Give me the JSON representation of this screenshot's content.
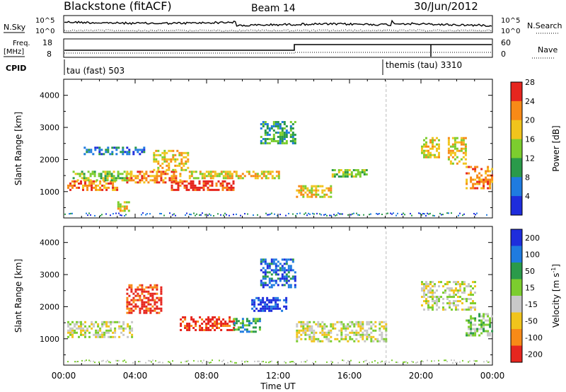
{
  "header": {
    "station": "Blackstone (fitACF)",
    "beam": "Beam 14",
    "date": "30/Jun/2012"
  },
  "side_labels": {
    "nsky": "N.Sky",
    "nsearch": "N.Search",
    "freq_top": "Freq.",
    "freq_unit": "[MHz]",
    "cpid": "CPID",
    "nave": "Nave",
    "nsky_tick_hi": "10^5",
    "nsky_tick_lo": "10^0",
    "nsearch_tick_hi": "10^5",
    "nsearch_tick_lo": "10^0",
    "freq_tick_hi": "18",
    "freq_tick_lo": "8",
    "nave_tick_hi": "60",
    "nave_tick_lo": "0"
  },
  "cpid": {
    "mode1": "tau (fast) 503",
    "mode2": "themis (tau) 3310"
  },
  "chart_data": [
    {
      "type": "heatmap",
      "panel": "power",
      "ylabel": "Slant Range [km]",
      "yticks": [
        1000,
        2000,
        3000,
        4000
      ],
      "ylim": [
        180,
        4500
      ],
      "xlim_hours": [
        0,
        24
      ],
      "colorbar": {
        "label": "Power [dB]",
        "ticks": [
          "4",
          "8",
          "12",
          "16",
          "20",
          "24",
          "28"
        ],
        "colors": [
          "#1e2ddc",
          "#1f7be0",
          "#2a9a4a",
          "#7ccd2e",
          "#f1c41c",
          "#f88a17",
          "#e6261f"
        ]
      },
      "regions": [
        {
          "t0": 0.2,
          "t1": 3.0,
          "r0": 1050,
          "r1": 1350,
          "level": 5
        },
        {
          "t0": 0.5,
          "t1": 3.8,
          "r0": 1350,
          "r1": 1650,
          "level": 3
        },
        {
          "t0": 1.0,
          "t1": 4.5,
          "r0": 2150,
          "r1": 2400,
          "level": 1
        },
        {
          "t0": 3.0,
          "t1": 3.7,
          "r0": 400,
          "r1": 700,
          "level": 4
        },
        {
          "t0": 3.5,
          "t1": 6.5,
          "r0": 1300,
          "r1": 1650,
          "level": 5
        },
        {
          "t0": 5.0,
          "t1": 7.0,
          "r0": 1700,
          "r1": 2300,
          "level": 4
        },
        {
          "t0": 6.0,
          "t1": 9.5,
          "r0": 1050,
          "r1": 1350,
          "level": 6
        },
        {
          "t0": 7.0,
          "t1": 12.0,
          "r0": 1400,
          "r1": 1650,
          "level": 4
        },
        {
          "t0": 11.0,
          "t1": 13.0,
          "r0": 2500,
          "r1": 3200,
          "level": 2
        },
        {
          "t0": 13.0,
          "t1": 15.0,
          "r0": 850,
          "r1": 1200,
          "level": 4
        },
        {
          "t0": 15.0,
          "t1": 17.0,
          "r0": 1450,
          "r1": 1700,
          "level": 3
        },
        {
          "t0": 20.0,
          "t1": 21.0,
          "r0": 2100,
          "r1": 2700,
          "level": 4
        },
        {
          "t0": 21.5,
          "t1": 22.5,
          "r0": 1900,
          "r1": 2700,
          "level": 4
        },
        {
          "t0": 22.5,
          "t1": 24.0,
          "r0": 1100,
          "r1": 1800,
          "level": 5
        }
      ]
    },
    {
      "type": "heatmap",
      "panel": "velocity",
      "ylabel": "Slant Range [km]",
      "xlabel": "Time UT",
      "yticks": [
        1000,
        2000,
        3000,
        4000
      ],
      "ylim": [
        180,
        4500
      ],
      "xlim_hours": [
        0,
        24
      ],
      "xticks": [
        "00:00",
        "04:00",
        "08:00",
        "12:00",
        "16:00",
        "20:00",
        "00:00"
      ],
      "colorbar": {
        "label": "Velocity [m s",
        "label_sup": "-1",
        "label_end": "]",
        "ticks": [
          "200",
          "100",
          "50",
          "15",
          "-15",
          "-50",
          "-100",
          "-200"
        ],
        "colors": [
          "#1e2ddc",
          "#1f7be0",
          "#2a9a4a",
          "#7ccd2e",
          "#c8c8c8",
          "#f1c41c",
          "#f88a17",
          "#e6261f"
        ]
      },
      "regions": [
        {
          "t0": 0.2,
          "t1": 3.8,
          "r0": 1050,
          "r1": 1550,
          "level": 4
        },
        {
          "t0": 3.5,
          "t1": 5.5,
          "r0": 1800,
          "r1": 2700,
          "level": 7
        },
        {
          "t0": 6.5,
          "t1": 9.5,
          "r0": 1300,
          "r1": 1700,
          "level": 7
        },
        {
          "t0": 9.5,
          "t1": 11.0,
          "r0": 1200,
          "r1": 1650,
          "level": 2
        },
        {
          "t0": 10.5,
          "t1": 12.5,
          "r0": 1900,
          "r1": 2300,
          "level": 0
        },
        {
          "t0": 11.0,
          "t1": 13.0,
          "r0": 2600,
          "r1": 3500,
          "level": 1
        },
        {
          "t0": 13.0,
          "t1": 18.0,
          "r0": 900,
          "r1": 1550,
          "level": 4
        },
        {
          "t0": 20.0,
          "t1": 23.0,
          "r0": 1900,
          "r1": 2800,
          "level": 4
        },
        {
          "t0": 22.5,
          "t1": 24.0,
          "r0": 1100,
          "r1": 1800,
          "level": 3
        }
      ]
    }
  ]
}
